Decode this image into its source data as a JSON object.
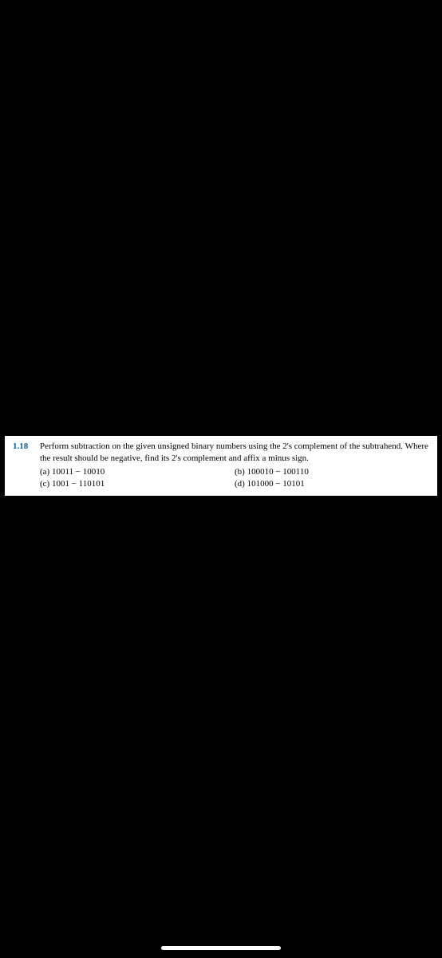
{
  "problem": {
    "number": "1.18",
    "text": "Perform subtraction on the given unsigned binary numbers using the 2's complement of the subtrahend. Where the result should be negative, find its 2's complement and affix a minus sign.",
    "parts": {
      "a": {
        "label": "(a)",
        "expr": "10011 − 10010"
      },
      "b": {
        "label": "(b)",
        "expr": "100010 − 100110"
      },
      "c": {
        "label": "(c)",
        "expr": "1001 − 110101"
      },
      "d": {
        "label": "(d)",
        "expr": "101000 − 10101"
      }
    }
  },
  "colors": {
    "background": "#000000",
    "paper": "#ffffff",
    "number": "#0066a6",
    "text": "#000000"
  }
}
